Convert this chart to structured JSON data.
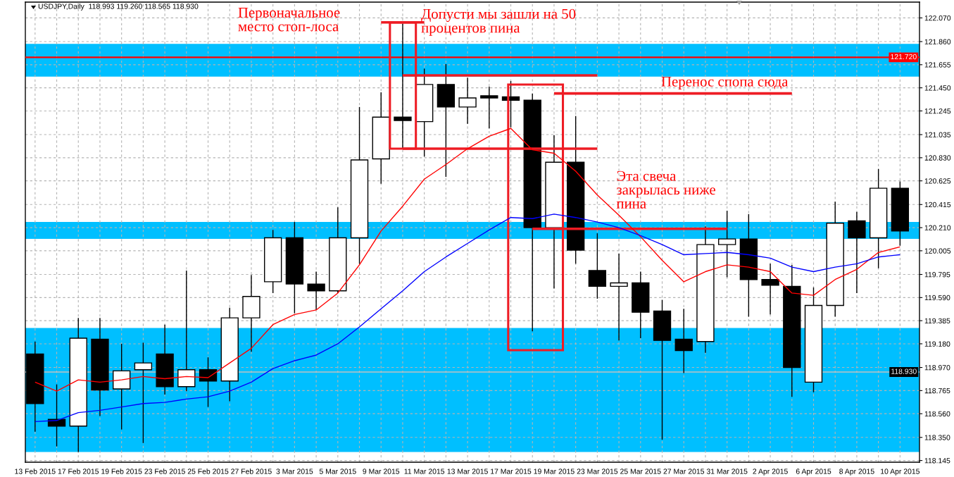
{
  "chart_data": {
    "type": "candlestick",
    "title": "USDJPY,Daily  118.993 119.260 118.565 118.930",
    "categories": [
      "13 Feb 2015",
      null,
      "17 Feb 2015",
      null,
      "19 Feb 2015",
      null,
      "23 Feb 2015",
      null,
      "25 Feb 2015",
      null,
      "27 Feb 2015",
      null,
      "3 Mar 2015",
      null,
      "5 Mar 2015",
      null,
      "9 Mar 2015",
      null,
      "11 Mar 2015",
      null,
      "13 Mar 2015",
      null,
      "17 Mar 2015",
      null,
      "19 Mar 2015",
      null,
      "23 Mar 2015",
      null,
      "25 Mar 2015",
      null,
      "27 Mar 2015",
      null,
      "31 Mar 2015",
      null,
      "2 Apr 2015",
      null,
      "6 Apr 2015",
      null,
      "8 Apr 2015",
      null,
      "10 Apr 2015"
    ],
    "ohlc": [
      [
        119.09,
        119.2,
        118.4,
        118.65
      ],
      [
        118.51,
        118.82,
        118.27,
        118.45
      ],
      [
        118.45,
        119.41,
        118.22,
        119.23
      ],
      [
        119.22,
        119.41,
        118.54,
        118.77
      ],
      [
        118.78,
        119.18,
        118.42,
        118.94
      ],
      [
        118.95,
        119.19,
        118.3,
        119.01
      ],
      [
        119.09,
        119.35,
        118.73,
        118.8
      ],
      [
        118.8,
        119.83,
        118.76,
        118.95
      ],
      [
        118.95,
        119.06,
        118.62,
        118.85
      ],
      [
        118.85,
        119.5,
        118.67,
        119.41
      ],
      [
        119.41,
        119.79,
        119.11,
        119.6
      ],
      [
        119.73,
        120.19,
        119.63,
        120.12
      ],
      [
        120.12,
        120.26,
        119.45,
        119.71
      ],
      [
        119.71,
        119.82,
        119.48,
        119.65
      ],
      [
        119.65,
        120.39,
        119.63,
        120.12
      ],
      [
        120.12,
        121.28,
        119.89,
        120.81
      ],
      [
        120.82,
        121.41,
        120.6,
        121.19
      ],
      [
        121.19,
        122.02,
        120.91,
        121.16
      ],
      [
        121.15,
        121.62,
        120.84,
        121.48
      ],
      [
        121.48,
        121.66,
        120.66,
        121.28
      ],
      [
        121.28,
        121.54,
        121.13,
        121.36
      ],
      [
        121.38,
        121.46,
        121.09,
        121.36
      ],
      [
        121.37,
        121.51,
        121.1,
        121.34
      ],
      [
        121.34,
        121.4,
        119.29,
        120.21
      ],
      [
        120.21,
        121.03,
        119.67,
        120.79
      ],
      [
        120.79,
        121.2,
        119.89,
        120.01
      ],
      [
        119.83,
        120.16,
        119.58,
        119.69
      ],
      [
        119.69,
        119.98,
        119.21,
        119.72
      ],
      [
        119.72,
        119.82,
        119.23,
        119.46
      ],
      [
        119.47,
        119.57,
        118.33,
        119.21
      ],
      [
        119.22,
        119.49,
        118.92,
        119.12
      ],
      [
        119.2,
        120.22,
        119.1,
        120.06
      ],
      [
        120.06,
        120.36,
        119.77,
        120.11
      ],
      [
        120.11,
        120.33,
        119.42,
        119.75
      ],
      [
        119.75,
        119.89,
        119.44,
        119.7
      ],
      [
        119.69,
        119.88,
        118.71,
        118.97
      ],
      [
        118.84,
        119.68,
        118.75,
        119.52
      ],
      [
        119.52,
        120.44,
        119.42,
        120.25
      ],
      [
        120.27,
        120.35,
        119.63,
        120.12
      ],
      [
        120.12,
        120.73,
        119.85,
        120.56
      ],
      [
        120.56,
        120.62,
        120.05,
        120.18
      ]
    ],
    "colors": [
      "#000000",
      "#000000",
      "#ffffff",
      "#000000",
      "#ffffff",
      "#ffffff",
      "#000000",
      "#ffffff",
      "#000000",
      "#ffffff",
      "#ffffff",
      "#ffffff",
      "#000000",
      "#000000",
      "#ffffff",
      "#ffffff",
      "#ffffff",
      "#000000",
      "#ffffff",
      "#000000",
      "#ffffff",
      "#000000",
      "#000000",
      "#000000",
      "#ffffff",
      "#000000",
      "#000000",
      "#ffffff",
      "#000000",
      "#000000",
      "#000000",
      "#ffffff",
      "#ffffff",
      "#000000",
      "#000000",
      "#000000",
      "#ffffff",
      "#ffffff",
      "#000000",
      "#ffffff",
      "#000000"
    ],
    "series": [
      {
        "type": "line",
        "color": "#ff0000",
        "values": [
          118.84,
          118.76,
          118.86,
          118.84,
          118.86,
          118.89,
          118.87,
          118.89,
          118.88,
          119.01,
          119.14,
          119.35,
          119.44,
          119.48,
          119.63,
          119.88,
          120.18,
          120.4,
          120.64,
          120.77,
          120.91,
          121.02,
          121.09,
          120.9,
          120.87,
          120.71,
          120.5,
          120.32,
          120.13,
          119.92,
          119.73,
          119.82,
          119.88,
          119.86,
          119.82,
          119.63,
          119.61,
          119.75,
          119.84,
          119.99,
          120.04
        ]
      },
      {
        "type": "line",
        "color": "#0000ff",
        "values": [
          118.49,
          118.5,
          118.57,
          118.59,
          118.62,
          118.65,
          118.66,
          118.69,
          118.71,
          118.76,
          118.84,
          118.96,
          119.03,
          119.08,
          119.18,
          119.33,
          119.49,
          119.65,
          119.82,
          119.95,
          120.07,
          120.19,
          120.3,
          120.29,
          120.33,
          120.3,
          120.26,
          120.21,
          120.14,
          120.06,
          119.97,
          119.98,
          119.99,
          119.97,
          119.94,
          119.86,
          119.82,
          119.86,
          119.89,
          119.95,
          119.97
        ]
      },
      {
        "type": "line",
        "color": "#ee1c24",
        "values": [
          null,
          null,
          null,
          null,
          null,
          null,
          null,
          null,
          null,
          null,
          null,
          null,
          null,
          null,
          null,
          null,
          122.03,
          122.03,
          122.03,
          null,
          null,
          null,
          null,
          null,
          null,
          null,
          null,
          null,
          null,
          null,
          null,
          null,
          null,
          null,
          null,
          null,
          null,
          null,
          null,
          null,
          null
        ]
      },
      {
        "type": "line",
        "color": "#ee1c24",
        "values": [
          null,
          null,
          null,
          null,
          null,
          null,
          null,
          null,
          null,
          null,
          null,
          null,
          null,
          null,
          null,
          null,
          null,
          120.91,
          120.91,
          120.91,
          120.91,
          120.91,
          120.91,
          120.91,
          120.91,
          120.91,
          120.91,
          null,
          null,
          null,
          null,
          null,
          null,
          null,
          null,
          null,
          null,
          null,
          null,
          null,
          null
        ]
      },
      {
        "type": "line",
        "color": "#ee1c24",
        "values": [
          null,
          null,
          null,
          null,
          null,
          null,
          null,
          null,
          null,
          null,
          null,
          null,
          null,
          null,
          null,
          null,
          null,
          121.56,
          121.56,
          121.56,
          121.56,
          121.56,
          121.56,
          121.56,
          121.56,
          121.56,
          121.56,
          null,
          null,
          null,
          null,
          null,
          null,
          null,
          null,
          null,
          null,
          null,
          null,
          null,
          null
        ]
      },
      {
        "type": "line",
        "color": "#ee1c24",
        "values": [
          null,
          null,
          null,
          null,
          null,
          null,
          null,
          null,
          null,
          null,
          null,
          null,
          null,
          null,
          null,
          null,
          null,
          null,
          null,
          null,
          null,
          null,
          null,
          null,
          121.4,
          121.4,
          121.4,
          121.4,
          121.4,
          121.4,
          121.4,
          121.4,
          121.4,
          121.4,
          121.4,
          121.4,
          null,
          null,
          null,
          null,
          null
        ]
      },
      {
        "type": "line",
        "color": "#ee1c24",
        "values": [
          null,
          null,
          null,
          null,
          null,
          null,
          null,
          null,
          null,
          null,
          null,
          null,
          null,
          null,
          null,
          null,
          null,
          null,
          null,
          null,
          null,
          null,
          null,
          120.2,
          120.2,
          120.2,
          120.2,
          120.2,
          120.2,
          120.2,
          120.2,
          120.2,
          120.2,
          null,
          null,
          null,
          null,
          null,
          null,
          null,
          null
        ]
      }
    ],
    "bands": [
      {
        "axis": "y",
        "from": 121.55,
        "to": 121.84,
        "color": "#00bfff"
      },
      {
        "axis": "y",
        "from": 120.11,
        "to": 120.26,
        "color": "#00bfff"
      },
      {
        "axis": "y",
        "from": 118.22,
        "to": 119.32,
        "color": "#00bfff"
      }
    ],
    "ref_lines": [
      {
        "axis": "y",
        "value": 121.72,
        "label": "121.720",
        "color": "#ff0000"
      },
      {
        "axis": "y",
        "value": 118.93,
        "label": "118.930",
        "color": "#c0c0c0"
      }
    ],
    "annotations": [
      "Первоначальное\nместо стоп-лоса",
      "Допусти мы зашли на 50\nпроцентов пина",
      "Перенос спопа сюда",
      "Эта свеча\nзакрылась ниже\nпина"
    ],
    "ylim": [
      118.13,
      122.21
    ],
    "yticks": [
      {
        "value": 122.07,
        "label": "122.070"
      },
      {
        "value": 121.86,
        "label": "121.860"
      },
      {
        "value": 121.655,
        "label": "121.655"
      },
      {
        "value": 121.45,
        "label": "121.450"
      },
      {
        "value": 121.245,
        "label": "121.245"
      },
      {
        "value": 121.035,
        "label": "121.035"
      },
      {
        "value": 120.83,
        "label": "120.830"
      },
      {
        "value": 120.625,
        "label": "120.625"
      },
      {
        "value": 120.415,
        "label": "120.415"
      },
      {
        "value": 120.21,
        "label": "120.210"
      },
      {
        "value": 120.005,
        "label": "120.005"
      },
      {
        "value": 119.795,
        "label": "119.795"
      },
      {
        "value": 119.59,
        "label": "119.590"
      },
      {
        "value": 119.385,
        "label": "119.385"
      },
      {
        "value": 119.18,
        "label": "119.180"
      },
      {
        "value": 118.97,
        "label": "118.970"
      },
      {
        "value": 118.765,
        "label": "118.765"
      },
      {
        "value": 118.56,
        "label": "118.560"
      },
      {
        "value": 118.35,
        "label": "118.350"
      },
      {
        "value": 118.145,
        "label": "118.145"
      }
    ],
    "grid": true
  }
}
